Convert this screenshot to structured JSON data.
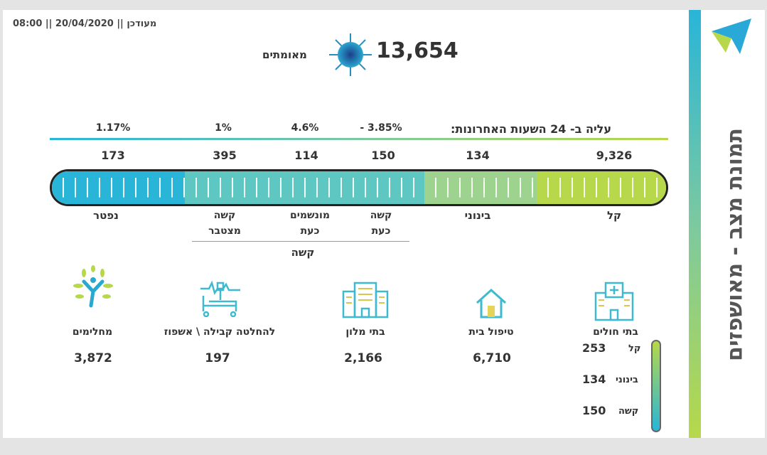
{
  "header": {
    "updated": "08:00 || 20/04/2020 || מעודכן",
    "confirmed_count": "13,654",
    "confirmed_label": "מאומתים"
  },
  "title": "תמונת מצב - מאושפזים",
  "increase_label": "עליה ב- 24 השעות האחרונות:",
  "percents": [
    "1.17%",
    "1%",
    "4.6%",
    "- 3.85%"
  ],
  "counts": [
    "173",
    "395",
    "114",
    "150",
    "134",
    "9,326"
  ],
  "categories": {
    "dead": "נפטר",
    "severe_cumulative": "קשה מצטבר",
    "ventilated": "מונשמים כעת",
    "severe_now": "קשה כעת",
    "moderate": "בינוני",
    "mild": "קל",
    "severe_group": "קשה"
  },
  "colors": {
    "dead": "#29b5d8",
    "severe": "#5ec7c2",
    "moderate": "#9dd38e",
    "mild": "#b6d84a"
  },
  "locations": [
    {
      "label": "מחלימים",
      "value": "3,872",
      "icon": "recovered-tree-icon"
    },
    {
      "label": "להחלטה קבילה \\ אשפוז",
      "value": "197",
      "icon": "hospital-bed-icon"
    },
    {
      "label": "בתי מלון",
      "value": "2,166",
      "icon": "hotel-icon"
    },
    {
      "label": "טיפול בית",
      "value": "6,710",
      "icon": "home-icon"
    },
    {
      "label": "בתי חולים",
      "icon": "hospital-icon"
    }
  ],
  "hospital_breakdown": [
    {
      "label": "קל",
      "value": "253"
    },
    {
      "label": "בינוני",
      "value": "134"
    },
    {
      "label": "קשה",
      "value": "150"
    }
  ]
}
